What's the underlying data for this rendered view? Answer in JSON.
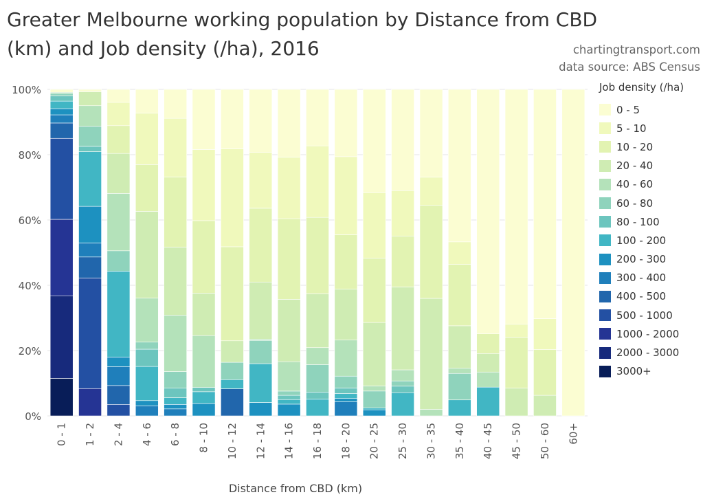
{
  "header": {
    "title": "Greater Melbourne working population by Distance from CBD (km) and Job density (/ha), 2016",
    "credit": "chartingtransport.com",
    "source": "data source: ABS Census"
  },
  "chart_data": {
    "type": "bar",
    "stacked": true,
    "percent_stacked": true,
    "xlabel": "Distance from CBD (km)",
    "ylabel": "",
    "ylim": [
      0,
      100
    ],
    "yticks": [
      "0%",
      "20%",
      "40%",
      "60%",
      "80%",
      "100%"
    ],
    "yticks_values": [
      0,
      20,
      40,
      60,
      80,
      100
    ],
    "grid": true,
    "legend_title": "Job density (/ha)",
    "legend_position": "right",
    "categories": [
      "0 - 1",
      "1 - 2",
      "2 - 4",
      "4 - 6",
      "6 - 8",
      "8 - 10",
      "10 - 12",
      "12 - 14",
      "14 - 16",
      "16 - 18",
      "18 - 20",
      "20 - 25",
      "25 - 30",
      "30 - 35",
      "35 - 40",
      "40 - 45",
      "45 - 50",
      "50 - 60",
      "60+"
    ],
    "series": [
      {
        "name": "3000+",
        "color": "#081d58",
        "values": [
          11.5,
          0,
          0,
          0,
          0,
          0,
          0,
          0,
          0,
          0,
          0,
          0,
          0,
          0,
          0,
          0,
          0,
          0,
          0
        ]
      },
      {
        "name": "2000 - 3000",
        "color": "#172a7c",
        "values": [
          25.3,
          0,
          0,
          0,
          0,
          0,
          0,
          0,
          0,
          0,
          0,
          0,
          0,
          0,
          0,
          0,
          0,
          0,
          0
        ]
      },
      {
        "name": "1000 - 2000",
        "color": "#253494",
        "values": [
          23.4,
          8.2,
          0,
          0,
          0,
          0,
          0,
          0,
          0,
          0,
          0,
          0,
          0,
          0,
          0,
          0,
          0,
          0,
          0
        ]
      },
      {
        "name": "500 - 1000",
        "color": "#2350a3",
        "values": [
          24.8,
          33.2,
          3.1,
          0,
          0,
          0,
          0,
          0,
          0,
          0,
          0,
          0,
          0,
          0,
          0,
          0,
          0,
          0,
          0
        ]
      },
      {
        "name": "400 - 500",
        "color": "#2166ac",
        "values": [
          4.7,
          6.3,
          5.1,
          0,
          0,
          0,
          8.3,
          0,
          0,
          0,
          0,
          0,
          0,
          0,
          0,
          0,
          0,
          0,
          0
        ]
      },
      {
        "name": "300 - 400",
        "color": "#1f7fbb",
        "values": [
          2.5,
          4.2,
          5.1,
          3.1,
          2.2,
          0,
          0,
          0,
          0,
          0,
          4.3,
          0,
          0,
          0,
          0,
          0,
          0,
          0,
          0
        ]
      },
      {
        "name": "200 - 300",
        "color": "#1d91c0",
        "values": [
          1.9,
          11.0,
          2.6,
          1.6,
          1.4,
          3.8,
          0,
          4.1,
          3.6,
          0,
          1.0,
          1.9,
          0,
          0,
          0,
          0,
          0,
          0,
          0
        ]
      },
      {
        "name": "100 - 200",
        "color": "#41b6c4",
        "values": [
          2.3,
          16.4,
          23.2,
          10.5,
          2.1,
          3.6,
          2.8,
          11.9,
          1.4,
          5.1,
          1.5,
          0.6,
          7.1,
          0,
          4.9,
          7.6,
          0,
          0,
          0
        ]
      },
      {
        "name": "80 - 100",
        "color": "#6cc5be",
        "values": [
          1.6,
          1.6,
          0,
          5.3,
          3.0,
          1.3,
          0,
          0,
          1.3,
          2.2,
          1.7,
          0,
          2.0,
          0,
          0,
          0,
          0,
          0,
          0
        ]
      },
      {
        "name": "60 - 80",
        "color": "#8fd3bc",
        "values": [
          0.7,
          6.0,
          5.5,
          2.2,
          5.2,
          0,
          5.3,
          7.1,
          1.3,
          8.4,
          3.6,
          5.3,
          1.6,
          0,
          8.1,
          0,
          0,
          0,
          0
        ]
      },
      {
        "name": "40 - 60",
        "color": "#b4e2ba",
        "values": [
          0.4,
          6.2,
          15.5,
          13.5,
          17.7,
          15.9,
          0,
          0.4,
          9.0,
          5.2,
          11.0,
          1.6,
          3.4,
          2.0,
          1.6,
          4.0,
          0,
          0,
          0
        ]
      },
      {
        "name": "20 - 40",
        "color": "#cfecb3",
        "values": [
          0,
          4.2,
          10.8,
          26.7,
          21.4,
          13.0,
          6.6,
          17.5,
          19.1,
          16.5,
          15.5,
          19.9,
          25.4,
          34.0,
          13.0,
          4.9,
          8.5,
          6.3,
          0
        ]
      },
      {
        "name": "10 - 20",
        "color": "#e2f3b2",
        "values": [
          0,
          0,
          7.5,
          14.4,
          22.0,
          22.2,
          28.8,
          22.6,
          24.7,
          23.4,
          16.6,
          20.2,
          15.6,
          28.5,
          18.8,
          5.2,
          15.6,
          14.0,
          0
        ]
      },
      {
        "name": "5 - 10",
        "color": "#f0f9bc",
        "values": [
          0,
          0,
          6.3,
          15.8,
          18.4,
          21.8,
          30.0,
          17.1,
          18.8,
          21.9,
          23.8,
          20.5,
          13.9,
          8.6,
          6.9,
          0,
          4.0,
          9.5,
          0
        ]
      },
      {
        "name": "0 - 5",
        "color": "#fbfdd2",
        "values": [
          0.9,
          0.7,
          3.5,
          7.3,
          9.1,
          18.4,
          18.2,
          19.3,
          20.8,
          17.3,
          20.5,
          32.4,
          31.0,
          26.9,
          46.7,
          64.7,
          71.9,
          70.2,
          100
        ]
      }
    ]
  }
}
